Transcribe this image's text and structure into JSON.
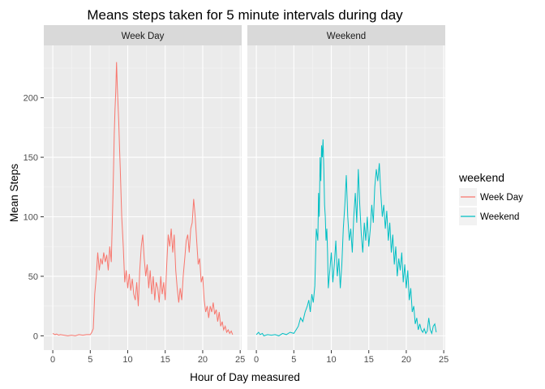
{
  "chart_data": {
    "type": "line",
    "title": "Means steps taken for 5 minute intervals during day",
    "xlabel": "Hour of Day measured",
    "ylabel": "Mean Steps",
    "xlim": [
      -1.2,
      25.2
    ],
    "ylim": [
      -12,
      244
    ],
    "x_ticks": [
      0,
      5,
      10,
      15,
      20,
      25
    ],
    "y_ticks": [
      0,
      50,
      100,
      150,
      200
    ],
    "grid": true,
    "legend": {
      "title": "weekend",
      "position": "right"
    },
    "facets": [
      {
        "label": "Week Day",
        "series": "Week Day"
      },
      {
        "label": "Weekend",
        "series": "Weekend"
      }
    ],
    "series": [
      {
        "name": "Week Day",
        "color": "#F8766D",
        "points": [
          [
            0,
            2
          ],
          [
            0.3,
            1
          ],
          [
            0.5,
            1.5
          ],
          [
            0.8,
            0.5
          ],
          [
            1,
            1
          ],
          [
            1.5,
            0.5
          ],
          [
            2,
            0
          ],
          [
            2.5,
            0.5
          ],
          [
            3,
            0
          ],
          [
            3.5,
            1
          ],
          [
            4,
            0.5
          ],
          [
            4.5,
            1
          ],
          [
            5,
            1
          ],
          [
            5.2,
            3
          ],
          [
            5.4,
            6
          ],
          [
            5.5,
            20
          ],
          [
            5.6,
            35
          ],
          [
            5.8,
            50
          ],
          [
            6,
            70
          ],
          [
            6.2,
            55
          ],
          [
            6.4,
            65
          ],
          [
            6.6,
            60
          ],
          [
            6.8,
            70
          ],
          [
            7,
            62
          ],
          [
            7.2,
            68
          ],
          [
            7.4,
            55
          ],
          [
            7.6,
            75
          ],
          [
            7.8,
            62
          ],
          [
            8,
            110
          ],
          [
            8.1,
            140
          ],
          [
            8.2,
            170
          ],
          [
            8.3,
            190
          ],
          [
            8.4,
            205
          ],
          [
            8.5,
            230
          ],
          [
            8.6,
            210
          ],
          [
            8.7,
            195
          ],
          [
            8.8,
            180
          ],
          [
            8.9,
            160
          ],
          [
            9,
            140
          ],
          [
            9.2,
            100
          ],
          [
            9.4,
            75
          ],
          [
            9.6,
            45
          ],
          [
            9.8,
            55
          ],
          [
            10,
            40
          ],
          [
            10.2,
            52
          ],
          [
            10.4,
            38
          ],
          [
            10.6,
            48
          ],
          [
            10.8,
            35
          ],
          [
            11,
            30
          ],
          [
            11.2,
            45
          ],
          [
            11.4,
            25
          ],
          [
            11.6,
            55
          ],
          [
            11.8,
            75
          ],
          [
            12,
            85
          ],
          [
            12.2,
            65
          ],
          [
            12.4,
            50
          ],
          [
            12.6,
            60
          ],
          [
            12.8,
            40
          ],
          [
            13,
            55
          ],
          [
            13.2,
            35
          ],
          [
            13.4,
            50
          ],
          [
            13.6,
            30
          ],
          [
            13.8,
            45
          ],
          [
            14,
            40
          ],
          [
            14.2,
            28
          ],
          [
            14.4,
            50
          ],
          [
            14.6,
            35
          ],
          [
            14.8,
            45
          ],
          [
            15,
            30
          ],
          [
            15.2,
            60
          ],
          [
            15.4,
            85
          ],
          [
            15.6,
            75
          ],
          [
            15.8,
            90
          ],
          [
            16,
            70
          ],
          [
            16.2,
            85
          ],
          [
            16.4,
            55
          ],
          [
            16.6,
            40
          ],
          [
            16.8,
            28
          ],
          [
            17,
            40
          ],
          [
            17.2,
            30
          ],
          [
            17.4,
            50
          ],
          [
            17.6,
            65
          ],
          [
            17.8,
            80
          ],
          [
            18,
            85
          ],
          [
            18.2,
            70
          ],
          [
            18.4,
            90
          ],
          [
            18.6,
            95
          ],
          [
            18.8,
            115
          ],
          [
            19,
            100
          ],
          [
            19.2,
            80
          ],
          [
            19.4,
            60
          ],
          [
            19.6,
            65
          ],
          [
            19.8,
            45
          ],
          [
            20,
            50
          ],
          [
            20.2,
            30
          ],
          [
            20.4,
            20
          ],
          [
            20.6,
            25
          ],
          [
            20.8,
            15
          ],
          [
            21,
            25
          ],
          [
            21.2,
            20
          ],
          [
            21.4,
            28
          ],
          [
            21.6,
            18
          ],
          [
            21.8,
            22
          ],
          [
            22,
            12
          ],
          [
            22.2,
            20
          ],
          [
            22.4,
            8
          ],
          [
            22.6,
            12
          ],
          [
            22.8,
            5
          ],
          [
            23,
            8
          ],
          [
            23.2,
            3
          ],
          [
            23.4,
            5
          ],
          [
            23.6,
            2
          ],
          [
            23.8,
            4
          ],
          [
            24,
            1
          ]
        ]
      },
      {
        "name": "Weekend",
        "color": "#00BFC4",
        "points": [
          [
            0,
            1
          ],
          [
            0.3,
            3
          ],
          [
            0.5,
            1
          ],
          [
            0.8,
            2
          ],
          [
            1,
            0
          ],
          [
            1.5,
            1
          ],
          [
            2,
            0.5
          ],
          [
            2.5,
            1
          ],
          [
            3,
            0
          ],
          [
            3.5,
            2
          ],
          [
            4,
            1
          ],
          [
            4.5,
            3
          ],
          [
            5,
            2
          ],
          [
            5.3,
            5
          ],
          [
            5.6,
            8
          ],
          [
            5.9,
            15
          ],
          [
            6.2,
            12
          ],
          [
            6.5,
            20
          ],
          [
            6.8,
            25
          ],
          [
            7,
            30
          ],
          [
            7.2,
            20
          ],
          [
            7.4,
            35
          ],
          [
            7.6,
            28
          ],
          [
            7.8,
            42
          ],
          [
            8,
            90
          ],
          [
            8.2,
            80
          ],
          [
            8.3,
            120
          ],
          [
            8.4,
            100
          ],
          [
            8.5,
            150
          ],
          [
            8.6,
            130
          ],
          [
            8.7,
            160
          ],
          [
            8.8,
            150
          ],
          [
            8.9,
            165
          ],
          [
            9,
            140
          ],
          [
            9.1,
            110
          ],
          [
            9.2,
            100
          ],
          [
            9.3,
            80
          ],
          [
            9.4,
            90
          ],
          [
            9.5,
            70
          ],
          [
            9.6,
            40
          ],
          [
            9.8,
            55
          ],
          [
            10,
            70
          ],
          [
            10.2,
            45
          ],
          [
            10.4,
            60
          ],
          [
            10.6,
            80
          ],
          [
            10.8,
            50
          ],
          [
            11,
            65
          ],
          [
            11.2,
            40
          ],
          [
            11.4,
            60
          ],
          [
            11.6,
            90
          ],
          [
            11.8,
            110
          ],
          [
            12,
            135
          ],
          [
            12.2,
            100
          ],
          [
            12.4,
            80
          ],
          [
            12.6,
            90
          ],
          [
            12.8,
            70
          ],
          [
            13,
            100
          ],
          [
            13.2,
            120
          ],
          [
            13.4,
            95
          ],
          [
            13.6,
            140
          ],
          [
            13.8,
            110
          ],
          [
            14,
            85
          ],
          [
            14.2,
            70
          ],
          [
            14.4,
            95
          ],
          [
            14.6,
            80
          ],
          [
            14.8,
            100
          ],
          [
            15,
            75
          ],
          [
            15.2,
            90
          ],
          [
            15.4,
            110
          ],
          [
            15.6,
            95
          ],
          [
            15.8,
            125
          ],
          [
            16,
            140
          ],
          [
            16.2,
            130
          ],
          [
            16.4,
            145
          ],
          [
            16.6,
            120
          ],
          [
            16.8,
            100
          ],
          [
            17,
            110
          ],
          [
            17.2,
            90
          ],
          [
            17.4,
            105
          ],
          [
            17.6,
            80
          ],
          [
            17.8,
            95
          ],
          [
            18,
            70
          ],
          [
            18.2,
            85
          ],
          [
            18.4,
            60
          ],
          [
            18.6,
            75
          ],
          [
            18.8,
            50
          ],
          [
            19,
            65
          ],
          [
            19.2,
            55
          ],
          [
            19.4,
            70
          ],
          [
            19.6,
            45
          ],
          [
            19.8,
            60
          ],
          [
            20,
            40
          ],
          [
            20.2,
            55
          ],
          [
            20.4,
            30
          ],
          [
            20.6,
            40
          ],
          [
            20.8,
            20
          ],
          [
            21,
            25
          ],
          [
            21.2,
            10
          ],
          [
            21.4,
            15
          ],
          [
            21.6,
            5
          ],
          [
            21.8,
            10
          ],
          [
            22,
            5
          ],
          [
            22.2,
            3
          ],
          [
            22.4,
            6
          ],
          [
            22.6,
            2
          ],
          [
            22.8,
            4
          ],
          [
            23,
            15
          ],
          [
            23.2,
            5
          ],
          [
            23.4,
            2
          ],
          [
            23.6,
            8
          ],
          [
            23.8,
            10
          ],
          [
            24,
            3
          ]
        ]
      }
    ]
  }
}
